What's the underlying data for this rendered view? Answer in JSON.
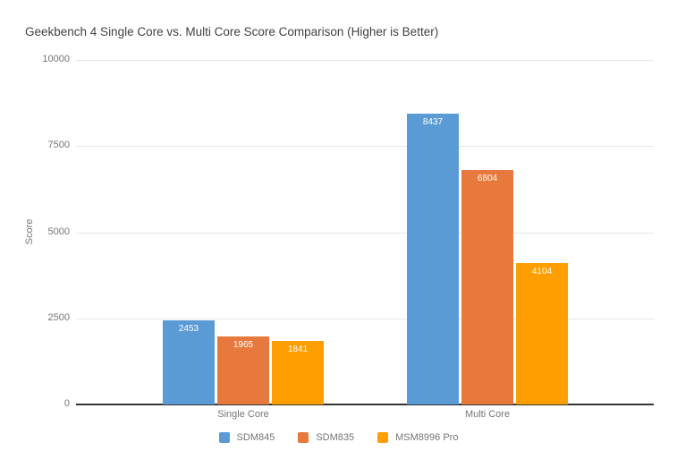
{
  "title": "Geekbench 4 Single Core vs. Multi Core Score Comparison (Higher is Better)",
  "chart_data": {
    "type": "bar",
    "title": "Geekbench 4 Single Core vs. Multi Core Score Comparison (Higher is Better)",
    "xlabel": "",
    "ylabel": "Score",
    "categories": [
      "Single Core",
      "Multi Core"
    ],
    "series": [
      {
        "name": "SDM845",
        "color": "#5B9BD5",
        "values": [
          2453,
          8437
        ]
      },
      {
        "name": "SDM835",
        "color": "#E8793D",
        "values": [
          1965,
          6804
        ]
      },
      {
        "name": "MSM8996 Pro",
        "color": "#FF9E00",
        "values": [
          1841,
          4104
        ]
      }
    ],
    "ylim": [
      0,
      10000
    ],
    "yticks": [
      0,
      2500,
      5000,
      7500,
      10000
    ],
    "grid": true,
    "bar_labels": true,
    "bar_label_color": "#ffffff",
    "legend_position": "bottom"
  },
  "colors": {
    "background": "#ffffff",
    "title_text": "#424242",
    "axis_text": "#757575",
    "gridline": "#e6e6e6",
    "baseline": "#333333"
  }
}
